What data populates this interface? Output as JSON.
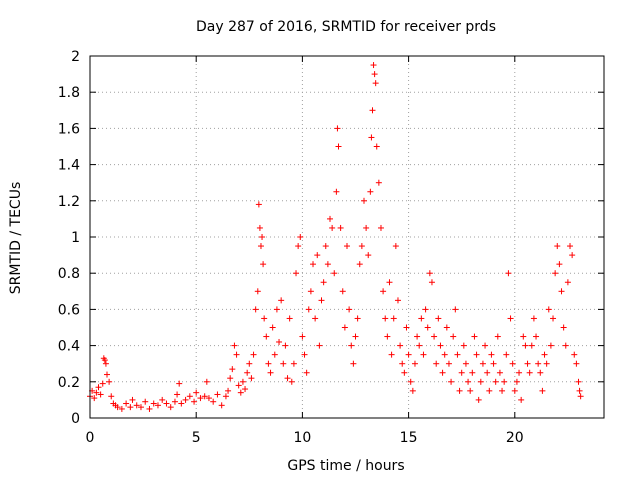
{
  "chart_data": {
    "type": "scatter",
    "title": "Day 287 of 2016, SRMTID for receiver prds",
    "xlabel": "GPS time / hours",
    "ylabel": "SRMTID / TECUs",
    "xlim": [
      0,
      24.2
    ],
    "ylim": [
      0,
      2
    ],
    "xticks": [
      0,
      5,
      10,
      15,
      20
    ],
    "yticks": [
      0,
      0.2,
      0.4,
      0.6,
      0.8,
      1,
      1.2,
      1.4,
      1.6,
      1.8,
      2
    ],
    "xtick_labels": [
      "0",
      "5",
      "10",
      "15",
      "20"
    ],
    "ytick_labels": [
      "0",
      "0.2",
      "0.4",
      "0.6",
      "0.8",
      "1",
      "1.2",
      "1.4",
      "1.6",
      "1.8",
      "2"
    ],
    "grid": true,
    "marker": "+",
    "series": [
      {
        "name": "prds",
        "color": "#ff0000",
        "points": [
          [
            0.0,
            0.12
          ],
          [
            0.1,
            0.15
          ],
          [
            0.2,
            0.11
          ],
          [
            0.3,
            0.14
          ],
          [
            0.4,
            0.17
          ],
          [
            0.5,
            0.13
          ],
          [
            0.6,
            0.19
          ],
          [
            0.65,
            0.33
          ],
          [
            0.7,
            0.32
          ],
          [
            0.75,
            0.3
          ],
          [
            0.8,
            0.24
          ],
          [
            0.9,
            0.2
          ],
          [
            1.0,
            0.12
          ],
          [
            1.1,
            0.08
          ],
          [
            1.2,
            0.07
          ],
          [
            1.3,
            0.06
          ],
          [
            1.5,
            0.05
          ],
          [
            1.7,
            0.08
          ],
          [
            1.9,
            0.06
          ],
          [
            2.0,
            0.1
          ],
          [
            2.2,
            0.07
          ],
          [
            2.4,
            0.06
          ],
          [
            2.6,
            0.09
          ],
          [
            2.8,
            0.05
          ],
          [
            3.0,
            0.08
          ],
          [
            3.2,
            0.07
          ],
          [
            3.4,
            0.1
          ],
          [
            3.6,
            0.08
          ],
          [
            3.8,
            0.06
          ],
          [
            4.0,
            0.09
          ],
          [
            4.1,
            0.13
          ],
          [
            4.2,
            0.19
          ],
          [
            4.3,
            0.08
          ],
          [
            4.5,
            0.1
          ],
          [
            4.7,
            0.12
          ],
          [
            4.9,
            0.09
          ],
          [
            5.0,
            0.14
          ],
          [
            5.2,
            0.11
          ],
          [
            5.4,
            0.12
          ],
          [
            5.5,
            0.2
          ],
          [
            5.6,
            0.11
          ],
          [
            5.8,
            0.09
          ],
          [
            6.0,
            0.13
          ],
          [
            6.2,
            0.07
          ],
          [
            6.4,
            0.12
          ],
          [
            6.5,
            0.15
          ],
          [
            6.6,
            0.22
          ],
          [
            6.7,
            0.27
          ],
          [
            6.8,
            0.4
          ],
          [
            6.9,
            0.35
          ],
          [
            7.0,
            0.18
          ],
          [
            7.1,
            0.14
          ],
          [
            7.2,
            0.2
          ],
          [
            7.3,
            0.16
          ],
          [
            7.4,
            0.25
          ],
          [
            7.5,
            0.3
          ],
          [
            7.6,
            0.22
          ],
          [
            7.7,
            0.35
          ],
          [
            7.8,
            0.6
          ],
          [
            7.9,
            0.7
          ],
          [
            7.95,
            1.18
          ],
          [
            8.0,
            1.05
          ],
          [
            8.05,
            0.95
          ],
          [
            8.1,
            1.0
          ],
          [
            8.15,
            0.85
          ],
          [
            8.2,
            0.55
          ],
          [
            8.3,
            0.45
          ],
          [
            8.4,
            0.3
          ],
          [
            8.5,
            0.25
          ],
          [
            8.6,
            0.5
          ],
          [
            8.7,
            0.35
          ],
          [
            8.8,
            0.6
          ],
          [
            8.9,
            0.42
          ],
          [
            9.0,
            0.65
          ],
          [
            9.1,
            0.3
          ],
          [
            9.2,
            0.4
          ],
          [
            9.3,
            0.22
          ],
          [
            9.4,
            0.55
          ],
          [
            9.5,
            0.2
          ],
          [
            9.6,
            0.3
          ],
          [
            9.7,
            0.8
          ],
          [
            9.8,
            0.95
          ],
          [
            9.9,
            1.0
          ],
          [
            10.0,
            0.45
          ],
          [
            10.1,
            0.35
          ],
          [
            10.2,
            0.25
          ],
          [
            10.3,
            0.6
          ],
          [
            10.4,
            0.7
          ],
          [
            10.5,
            0.85
          ],
          [
            10.6,
            0.55
          ],
          [
            10.7,
            0.9
          ],
          [
            10.8,
            0.4
          ],
          [
            10.9,
            0.65
          ],
          [
            11.0,
            0.75
          ],
          [
            11.1,
            0.95
          ],
          [
            11.2,
            0.85
          ],
          [
            11.3,
            1.1
          ],
          [
            11.4,
            1.05
          ],
          [
            11.5,
            0.8
          ],
          [
            11.6,
            1.25
          ],
          [
            11.65,
            1.6
          ],
          [
            11.7,
            1.5
          ],
          [
            11.8,
            1.05
          ],
          [
            11.9,
            0.7
          ],
          [
            12.0,
            0.5
          ],
          [
            12.1,
            0.95
          ],
          [
            12.2,
            0.6
          ],
          [
            12.3,
            0.4
          ],
          [
            12.4,
            0.3
          ],
          [
            12.5,
            0.45
          ],
          [
            12.6,
            0.55
          ],
          [
            12.7,
            0.85
          ],
          [
            12.8,
            0.95
          ],
          [
            12.9,
            1.2
          ],
          [
            13.0,
            1.05
          ],
          [
            13.1,
            0.9
          ],
          [
            13.2,
            1.25
          ],
          [
            13.25,
            1.55
          ],
          [
            13.3,
            1.7
          ],
          [
            13.35,
            1.95
          ],
          [
            13.4,
            1.9
          ],
          [
            13.45,
            1.85
          ],
          [
            13.5,
            1.5
          ],
          [
            13.6,
            1.3
          ],
          [
            13.7,
            1.05
          ],
          [
            13.8,
            0.7
          ],
          [
            13.9,
            0.55
          ],
          [
            14.0,
            0.45
          ],
          [
            14.1,
            0.75
          ],
          [
            14.2,
            0.35
          ],
          [
            14.3,
            0.55
          ],
          [
            14.4,
            0.95
          ],
          [
            14.5,
            0.65
          ],
          [
            14.6,
            0.4
          ],
          [
            14.7,
            0.3
          ],
          [
            14.8,
            0.25
          ],
          [
            14.9,
            0.5
          ],
          [
            15.0,
            0.35
          ],
          [
            15.1,
            0.2
          ],
          [
            15.2,
            0.15
          ],
          [
            15.3,
            0.3
          ],
          [
            15.4,
            0.45
          ],
          [
            15.5,
            0.4
          ],
          [
            15.6,
            0.55
          ],
          [
            15.7,
            0.35
          ],
          [
            15.8,
            0.6
          ],
          [
            15.9,
            0.5
          ],
          [
            16.0,
            0.8
          ],
          [
            16.1,
            0.75
          ],
          [
            16.2,
            0.45
          ],
          [
            16.3,
            0.3
          ],
          [
            16.4,
            0.55
          ],
          [
            16.5,
            0.4
          ],
          [
            16.6,
            0.25
          ],
          [
            16.7,
            0.35
          ],
          [
            16.8,
            0.5
          ],
          [
            16.9,
            0.3
          ],
          [
            17.0,
            0.2
          ],
          [
            17.1,
            0.45
          ],
          [
            17.2,
            0.6
          ],
          [
            17.3,
            0.35
          ],
          [
            17.4,
            0.15
          ],
          [
            17.5,
            0.25
          ],
          [
            17.6,
            0.4
          ],
          [
            17.7,
            0.3
          ],
          [
            17.8,
            0.2
          ],
          [
            17.9,
            0.15
          ],
          [
            18.0,
            0.25
          ],
          [
            18.1,
            0.45
          ],
          [
            18.2,
            0.35
          ],
          [
            18.3,
            0.1
          ],
          [
            18.4,
            0.2
          ],
          [
            18.5,
            0.3
          ],
          [
            18.6,
            0.4
          ],
          [
            18.7,
            0.25
          ],
          [
            18.8,
            0.15
          ],
          [
            18.9,
            0.35
          ],
          [
            19.0,
            0.3
          ],
          [
            19.1,
            0.2
          ],
          [
            19.2,
            0.45
          ],
          [
            19.3,
            0.25
          ],
          [
            19.4,
            0.15
          ],
          [
            19.5,
            0.2
          ],
          [
            19.6,
            0.35
          ],
          [
            19.7,
            0.8
          ],
          [
            19.8,
            0.55
          ],
          [
            19.9,
            0.3
          ],
          [
            20.0,
            0.15
          ],
          [
            20.1,
            0.2
          ],
          [
            20.2,
            0.25
          ],
          [
            20.3,
            0.1
          ],
          [
            20.4,
            0.45
          ],
          [
            20.5,
            0.4
          ],
          [
            20.6,
            0.3
          ],
          [
            20.7,
            0.25
          ],
          [
            20.8,
            0.4
          ],
          [
            20.9,
            0.55
          ],
          [
            21.0,
            0.45
          ],
          [
            21.1,
            0.3
          ],
          [
            21.2,
            0.25
          ],
          [
            21.3,
            0.15
          ],
          [
            21.4,
            0.35
          ],
          [
            21.5,
            0.3
          ],
          [
            21.6,
            0.6
          ],
          [
            21.7,
            0.4
          ],
          [
            21.8,
            0.55
          ],
          [
            21.9,
            0.8
          ],
          [
            22.0,
            0.95
          ],
          [
            22.1,
            0.85
          ],
          [
            22.2,
            0.7
          ],
          [
            22.3,
            0.5
          ],
          [
            22.4,
            0.4
          ],
          [
            22.5,
            0.75
          ],
          [
            22.6,
            0.95
          ],
          [
            22.7,
            0.9
          ],
          [
            22.8,
            0.35
          ],
          [
            22.9,
            0.3
          ],
          [
            23.0,
            0.2
          ],
          [
            23.05,
            0.15
          ],
          [
            23.1,
            0.12
          ]
        ]
      }
    ]
  }
}
